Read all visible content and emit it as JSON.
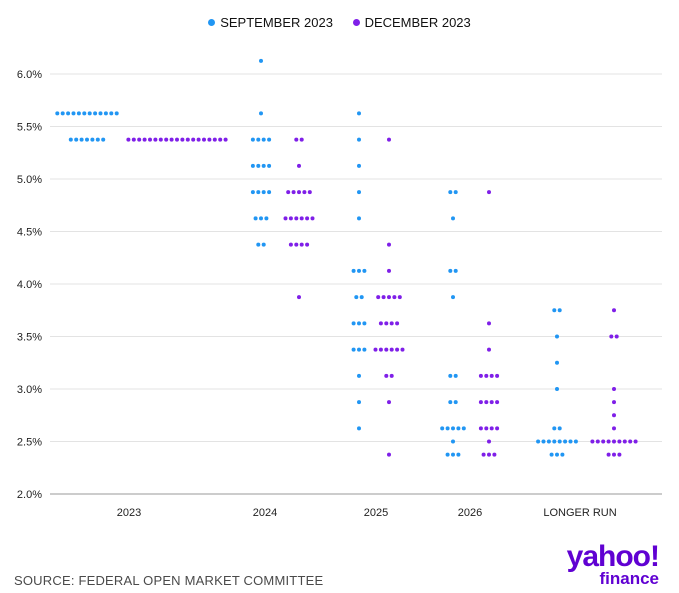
{
  "chart_data": {
    "type": "scatter",
    "title": "",
    "xlabel": "",
    "ylabel": "",
    "categories": [
      "2023",
      "2024",
      "2025",
      "2026",
      "LONGER RUN"
    ],
    "y_ticks": [
      "6.0%",
      "5.5%",
      "5.0%",
      "4.5%",
      "4.0%",
      "3.5%",
      "3.0%",
      "2.5%",
      "2.0%"
    ],
    "ylim": [
      2.0,
      6.0
    ],
    "grid": true,
    "legend_position": "top-center",
    "series": [
      {
        "name": "SEPTEMBER 2023",
        "color": "#2196f3",
        "counts": {
          "2023": [
            [
              5.625,
              12
            ],
            [
              5.375,
              7
            ]
          ],
          "2024": [
            [
              6.125,
              1
            ],
            [
              5.625,
              1
            ],
            [
              5.375,
              4
            ],
            [
              5.125,
              4
            ],
            [
              4.875,
              4
            ],
            [
              4.625,
              3
            ],
            [
              4.375,
              2
            ]
          ],
          "2025": [
            [
              5.625,
              1
            ],
            [
              5.375,
              1
            ],
            [
              5.125,
              1
            ],
            [
              4.875,
              1
            ],
            [
              4.625,
              1
            ],
            [
              4.125,
              3
            ],
            [
              3.875,
              2
            ],
            [
              3.625,
              3
            ],
            [
              3.375,
              3
            ],
            [
              3.125,
              1
            ],
            [
              2.875,
              1
            ],
            [
              2.625,
              1
            ]
          ],
          "2026": [
            [
              4.875,
              2
            ],
            [
              4.625,
              1
            ],
            [
              4.125,
              2
            ],
            [
              3.875,
              1
            ],
            [
              3.125,
              2
            ],
            [
              2.875,
              2
            ],
            [
              2.625,
              5
            ],
            [
              2.5,
              1
            ],
            [
              2.375,
              3
            ]
          ],
          "LONGER RUN": [
            [
              3.75,
              2
            ],
            [
              3.5,
              1
            ],
            [
              3.25,
              1
            ],
            [
              3.0,
              1
            ],
            [
              2.625,
              2
            ],
            [
              2.5,
              8
            ],
            [
              2.375,
              3
            ]
          ]
        }
      },
      {
        "name": "DECEMBER 2023",
        "color": "#7f1fe8",
        "counts": {
          "2023": [
            [
              5.375,
              19
            ]
          ],
          "2024": [
            [
              5.375,
              2
            ],
            [
              5.125,
              1
            ],
            [
              4.875,
              5
            ],
            [
              4.625,
              6
            ],
            [
              4.375,
              4
            ],
            [
              3.875,
              1
            ]
          ],
          "2025": [
            [
              5.375,
              1
            ],
            [
              4.375,
              1
            ],
            [
              4.125,
              1
            ],
            [
              3.875,
              5
            ],
            [
              3.625,
              4
            ],
            [
              3.375,
              6
            ],
            [
              3.125,
              2
            ],
            [
              2.875,
              1
            ],
            [
              2.375,
              1
            ]
          ],
          "2026": [
            [
              4.875,
              1
            ],
            [
              3.625,
              1
            ],
            [
              3.375,
              1
            ],
            [
              3.125,
              4
            ],
            [
              2.875,
              4
            ],
            [
              2.625,
              4
            ],
            [
              2.5,
              1
            ],
            [
              2.375,
              3
            ]
          ],
          "LONGER RUN": [
            [
              3.75,
              1
            ],
            [
              3.5,
              2
            ],
            [
              3.0,
              1
            ],
            [
              2.875,
              1
            ],
            [
              2.75,
              1
            ],
            [
              2.625,
              1
            ],
            [
              2.5,
              9
            ],
            [
              2.375,
              3
            ]
          ]
        }
      }
    ]
  },
  "footer": {
    "source": "SOURCE: FEDERAL OPEN MARKET COMMITTEE",
    "logo_top": "yahoo!",
    "logo_bottom": "finance"
  }
}
